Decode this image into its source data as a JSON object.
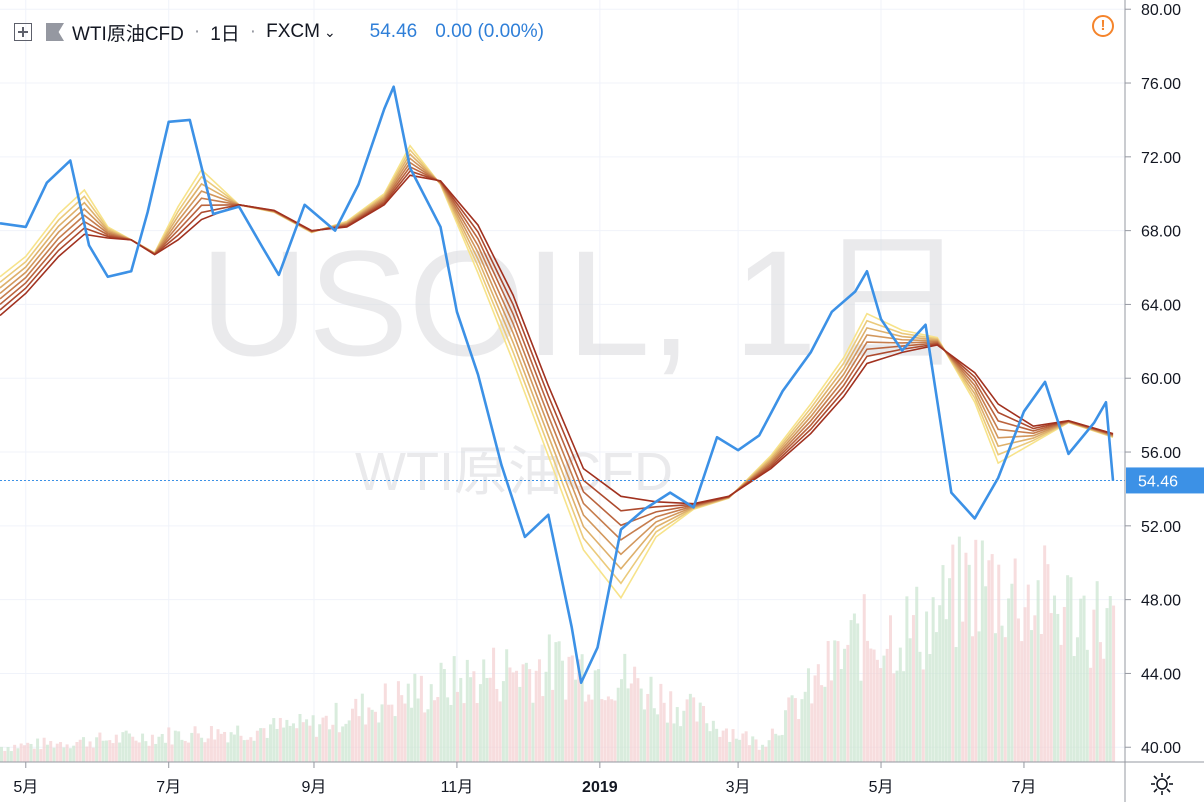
{
  "header": {
    "title": "WTI原油CFD",
    "interval": "1日",
    "exchange": "FXCM",
    "price": "54.46",
    "change": "0.00 (0.00%)"
  },
  "watermark": {
    "symbol": "USOIL, 1日",
    "name": "WTI原油CFD"
  },
  "colors": {
    "price_line": "#3c91e6",
    "ribbon_start": "#f7e38a",
    "ribbon_end": "#a1311f",
    "volume_up": "#c9e4cf",
    "volume_down": "#f3cfd0",
    "last_price_label": "#3c91e6"
  },
  "icons": {
    "expand": "plus-square-icon",
    "flag": "flag-icon",
    "alert": "warning-icon",
    "settings": "gear-icon"
  },
  "chart_data": {
    "type": "line",
    "symbol": "USOIL",
    "x_ticks": [
      "5月",
      "7月",
      "9月",
      "11月",
      "2019",
      "3月",
      "5月",
      "7月"
    ],
    "y_ticks": [
      "80.00",
      "76.00",
      "72.00",
      "68.00",
      "64.00",
      "60.00",
      "56.00",
      "52.00",
      "48.00",
      "44.00",
      "40.00"
    ],
    "ylim": [
      39.2,
      80.5
    ],
    "last_price": 54.46,
    "last_price_label": "54.46",
    "x_range": [
      "2018-04-20",
      "2019-08-08"
    ],
    "price_series": {
      "dates": [
        "2018-04-20",
        "2018-05-01",
        "2018-05-10",
        "2018-05-20",
        "2018-05-28",
        "2018-06-05",
        "2018-06-15",
        "2018-06-22",
        "2018-07-01",
        "2018-07-10",
        "2018-07-20",
        "2018-07-31",
        "2018-08-10",
        "2018-08-17",
        "2018-08-28",
        "2018-09-10",
        "2018-09-20",
        "2018-10-01",
        "2018-10-05",
        "2018-10-12",
        "2018-10-25",
        "2018-11-01",
        "2018-11-10",
        "2018-11-20",
        "2018-11-30",
        "2018-12-10",
        "2018-12-20",
        "2018-12-24",
        "2018-12-31",
        "2019-01-10",
        "2019-01-20",
        "2019-01-31",
        "2019-02-10",
        "2019-02-20",
        "2019-03-01",
        "2019-03-10",
        "2019-03-20",
        "2019-04-01",
        "2019-04-10",
        "2019-04-20",
        "2019-04-25",
        "2019-05-01",
        "2019-05-10",
        "2019-05-20",
        "2019-05-31",
        "2019-06-10",
        "2019-06-20",
        "2019-07-01",
        "2019-07-10",
        "2019-07-20",
        "2019-07-31",
        "2019-08-05",
        "2019-08-08"
      ],
      "values": [
        68.4,
        68.2,
        70.6,
        71.8,
        67.2,
        65.5,
        65.8,
        69.0,
        73.9,
        74.0,
        68.9,
        69.3,
        67.1,
        65.6,
        69.4,
        68.0,
        70.5,
        74.6,
        75.8,
        71.4,
        68.2,
        63.6,
        60.2,
        55.3,
        51.4,
        52.6,
        46.5,
        43.5,
        45.4,
        51.8,
        52.9,
        53.8,
        53.0,
        56.8,
        56.1,
        56.9,
        59.3,
        61.4,
        63.6,
        64.7,
        65.8,
        63.2,
        61.5,
        62.9,
        53.8,
        52.4,
        54.6,
        58.2,
        59.8,
        55.9,
        57.6,
        58.7,
        54.46
      ]
    },
    "moving_averages": {
      "count": 8,
      "note": "Ribbon of exponential moving averages drawn from shortest (yellow) to longest (dark red).",
      "dates": [
        "2018-04-20",
        "2018-05-01",
        "2018-05-15",
        "2018-05-26",
        "2018-06-05",
        "2018-06-15",
        "2018-06-25",
        "2018-07-05",
        "2018-07-15",
        "2018-07-31",
        "2018-08-15",
        "2018-08-31",
        "2018-09-15",
        "2018-10-01",
        "2018-10-12",
        "2018-10-25",
        "2018-11-10",
        "2018-11-25",
        "2018-12-10",
        "2018-12-25",
        "2019-01-10",
        "2019-01-25",
        "2019-02-10",
        "2019-02-25",
        "2019-03-15",
        "2019-04-01",
        "2019-04-15",
        "2019-04-25",
        "2019-05-10",
        "2019-05-25",
        "2019-06-10",
        "2019-06-20",
        "2019-07-05",
        "2019-07-20",
        "2019-08-08"
      ],
      "fast": [
        65.5,
        66.6,
        68.9,
        70.2,
        68.2,
        67.5,
        66.8,
        69.3,
        71.3,
        69.4,
        69.0,
        67.9,
        68.5,
        70.0,
        72.6,
        70.5,
        65.7,
        60.9,
        55.8,
        50.7,
        48.1,
        51.4,
        52.9,
        53.5,
        55.8,
        58.6,
        61.1,
        63.5,
        62.6,
        62.2,
        58.7,
        55.4,
        56.5,
        57.6,
        56.8
      ],
      "slow": [
        63.4,
        64.6,
        66.6,
        67.8,
        67.6,
        67.5,
        66.7,
        67.5,
        68.6,
        69.4,
        69.1,
        68.0,
        68.2,
        69.4,
        71.0,
        70.7,
        68.3,
        64.5,
        59.6,
        55.1,
        53.6,
        53.3,
        53.2,
        53.6,
        55.1,
        57.0,
        59.0,
        60.8,
        61.4,
        61.8,
        60.3,
        58.6,
        57.4,
        57.7,
        57.0
      ]
    },
    "volume": {
      "note": "Relative daily volume shown as green (up) and red (down) bars along the bottom.",
      "dates": [
        "2018-04-20",
        "2018-06-15",
        "2018-08-31",
        "2018-10-01",
        "2018-10-25",
        "2018-11-20",
        "2018-12-20",
        "2019-01-10",
        "2019-02-20",
        "2019-03-10",
        "2019-04-20",
        "2019-05-20",
        "2019-06-10",
        "2019-07-01",
        "2019-08-08"
      ],
      "relative": [
        0.05,
        0.08,
        0.12,
        0.2,
        0.25,
        0.3,
        0.32,
        0.28,
        0.12,
        0.06,
        0.4,
        0.45,
        0.6,
        0.55,
        0.45
      ]
    }
  }
}
